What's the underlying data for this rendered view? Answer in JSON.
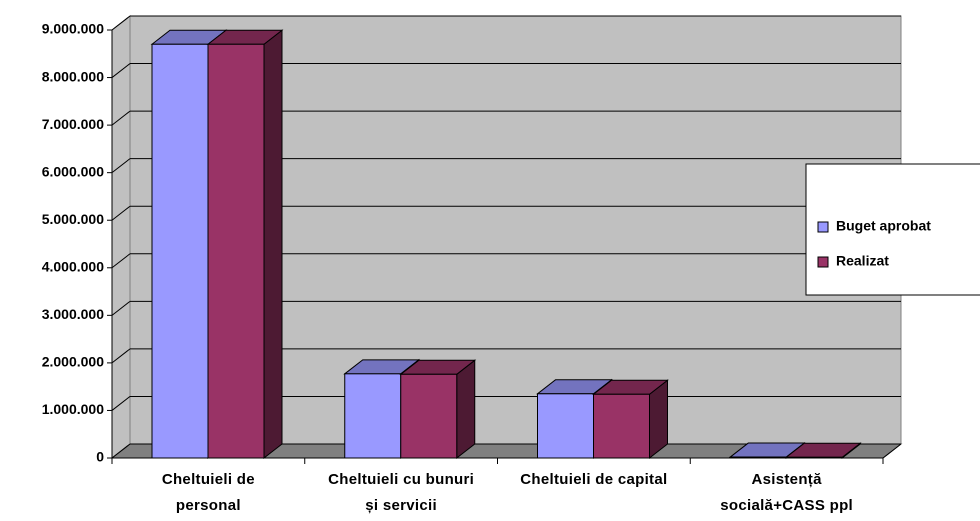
{
  "chart_data": {
    "type": "bar3d",
    "categories": [
      "Cheltuieli de personal",
      "Cheltuieli cu bunuri și servicii",
      "Cheltuieli de capital",
      "Asistență socială+CASS ppl"
    ],
    "series": [
      {
        "name": "Buget aprobat",
        "color": "#9999ff",
        "values": [
          8700000,
          1770000,
          1350000,
          20000
        ]
      },
      {
        "name": "Realizat",
        "color": "#993366",
        "values": [
          8700000,
          1760000,
          1340000,
          15000
        ]
      }
    ],
    "ylim": [
      0,
      9000000
    ],
    "yticks": [
      {
        "value": 0,
        "label": "0"
      },
      {
        "value": 1000000,
        "label": "1.000.000"
      },
      {
        "value": 2000000,
        "label": "2.000.000"
      },
      {
        "value": 3000000,
        "label": "3.000.000"
      },
      {
        "value": 4000000,
        "label": "4.000.000"
      },
      {
        "value": 5000000,
        "label": "5.000.000"
      },
      {
        "value": 6000000,
        "label": "6.000.000"
      },
      {
        "value": 7000000,
        "label": "7.000.000"
      },
      {
        "value": 8000000,
        "label": "8.000.000"
      },
      {
        "value": 9000000,
        "label": "9.000.000"
      }
    ],
    "grid": true,
    "legend": "right"
  }
}
